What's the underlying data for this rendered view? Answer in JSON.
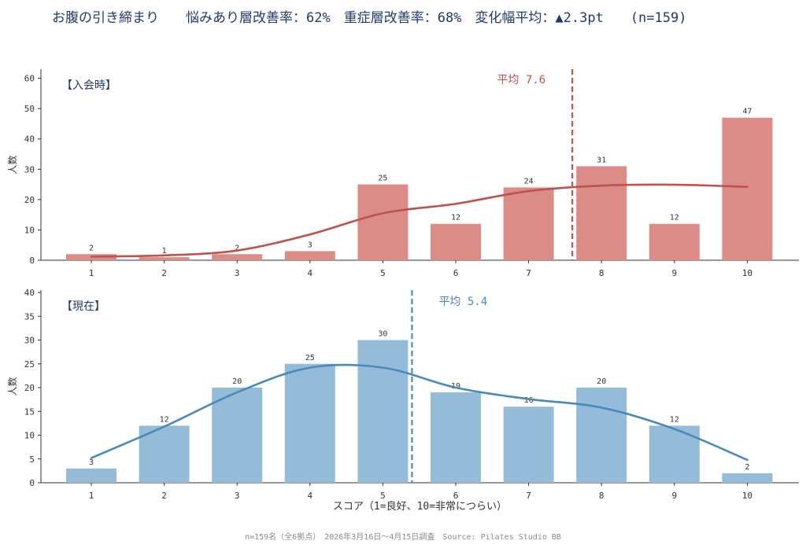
{
  "header": {
    "title": "お腹の引き締まり　　悩みあり層改善率：62%　重症層改善率：68%　変化幅平均：▲2.3pt　　(n=159)"
  },
  "footer": {
    "note": "n=159名（全6拠点）　2026年3月16日～4月15日調査　Source: Pilates Studio BB"
  },
  "chart_data": [
    {
      "type": "bar",
      "title": "【入会時】",
      "ylabel": "人数",
      "xlabel": "",
      "categories": [
        "1",
        "2",
        "3",
        "4",
        "5",
        "6",
        "7",
        "8",
        "9",
        "10"
      ],
      "values": [
        2,
        1,
        2,
        3,
        25,
        12,
        24,
        31,
        12,
        47
      ],
      "ylim": [
        0,
        63
      ],
      "yticks": [
        0,
        10,
        20,
        30,
        40,
        50,
        60
      ],
      "mean_value": 7.6,
      "mean_label": "平均 7.6",
      "smooth_curve": [
        1.2,
        1.6,
        3.2,
        8.5,
        15.5,
        18.6,
        22.8,
        24.6,
        24.9,
        24.2
      ],
      "bar_color": "#dc8c86",
      "line_color": "#c0504d",
      "title_color": "#1f3a6b",
      "grid": false
    },
    {
      "type": "bar",
      "title": "【現在】",
      "ylabel": "人数",
      "xlabel": "スコア（1=良好、10=非常につらい）",
      "categories": [
        "1",
        "2",
        "3",
        "4",
        "5",
        "6",
        "7",
        "8",
        "9",
        "10"
      ],
      "values": [
        3,
        12,
        20,
        25,
        30,
        19,
        16,
        20,
        12,
        2
      ],
      "ylim": [
        0,
        40.5
      ],
      "yticks": [
        0,
        5,
        10,
        15,
        20,
        25,
        30,
        35,
        40
      ],
      "mean_value": 5.4,
      "mean_label": "平均 5.4",
      "smooth_curve": [
        5.2,
        11.8,
        19.0,
        24.2,
        24.2,
        20.0,
        17.6,
        15.8,
        11.3,
        4.8
      ],
      "bar_color": "#94bcd9",
      "line_color": "#4a8ab8",
      "title_color": "#1f3a6b",
      "grid": false
    }
  ]
}
